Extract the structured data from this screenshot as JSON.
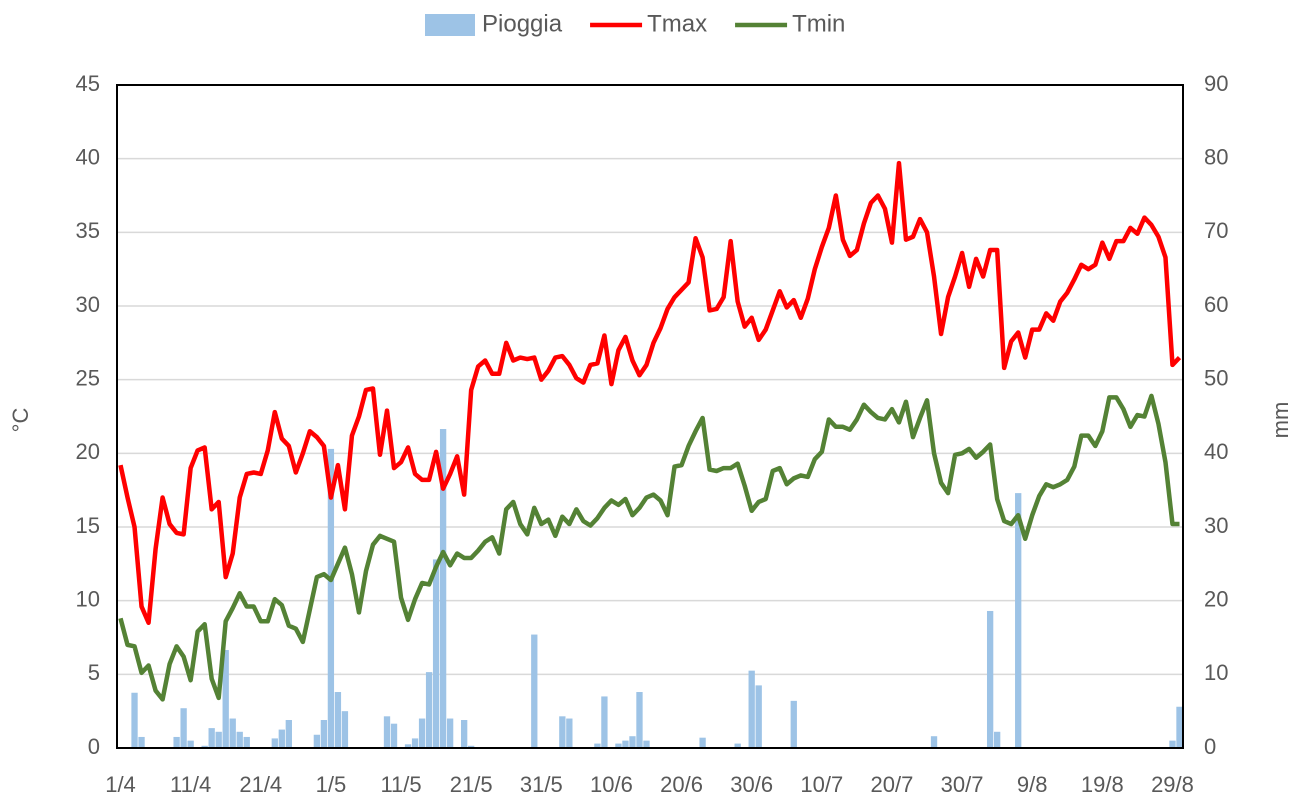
{
  "chart_data": {
    "type": "combo",
    "categories": [
      "1/4",
      null,
      null,
      null,
      null,
      null,
      null,
      null,
      null,
      null,
      "11/4",
      null,
      null,
      null,
      null,
      null,
      null,
      null,
      null,
      null,
      "21/4",
      null,
      null,
      null,
      null,
      null,
      null,
      null,
      null,
      null,
      "1/5",
      null,
      null,
      null,
      null,
      null,
      null,
      null,
      null,
      null,
      "11/5",
      null,
      null,
      null,
      null,
      null,
      null,
      null,
      null,
      null,
      "21/5",
      null,
      null,
      null,
      null,
      null,
      null,
      null,
      null,
      null,
      "31/5",
      null,
      null,
      null,
      null,
      null,
      null,
      null,
      null,
      null,
      "10/6",
      null,
      null,
      null,
      null,
      null,
      null,
      null,
      null,
      null,
      "20/6",
      null,
      null,
      null,
      null,
      null,
      null,
      null,
      null,
      null,
      "30/6",
      null,
      null,
      null,
      null,
      null,
      null,
      null,
      null,
      null,
      "10/7",
      null,
      null,
      null,
      null,
      null,
      null,
      null,
      null,
      null,
      "20/7",
      null,
      null,
      null,
      null,
      null,
      null,
      null,
      null,
      null,
      "30/7",
      null,
      null,
      null,
      null,
      null,
      null,
      null,
      null,
      null,
      "9/8",
      null,
      null,
      null,
      null,
      null,
      null,
      null,
      null,
      null,
      "19/8",
      null,
      null,
      null,
      null,
      null,
      null,
      null,
      null,
      null,
      "29/8",
      null
    ],
    "series": [
      {
        "name": "Pioggia",
        "type": "bar",
        "axis": "y2",
        "color": "#9dc3e6",
        "values": [
          0,
          0,
          7.5,
          1.5,
          0,
          0,
          0,
          0,
          1.5,
          5.4,
          1,
          0,
          0.3,
          2.7,
          2.2,
          13.3,
          4,
          2.2,
          1.5,
          0,
          0,
          0,
          1.3,
          2.5,
          3.8,
          0,
          0,
          0,
          1.8,
          3.8,
          40.6,
          7.6,
          5,
          0,
          0,
          0,
          0,
          0,
          4.3,
          3.3,
          0,
          0.5,
          1.3,
          4,
          10.3,
          25.6,
          43.3,
          4,
          0,
          3.8,
          0.3,
          0,
          0,
          0,
          0,
          0,
          0,
          0,
          0,
          15.4,
          0,
          0,
          0,
          4.3,
          4,
          0,
          0,
          0,
          0.6,
          7,
          0,
          0.6,
          1,
          1.6,
          7.6,
          1,
          0,
          0,
          0,
          0,
          0,
          0,
          0,
          1.4,
          0,
          0,
          0,
          0,
          0.6,
          0,
          10.5,
          8.5,
          0,
          0,
          0,
          0,
          6.4,
          0,
          0,
          0,
          0,
          0,
          0,
          0,
          0,
          0,
          0,
          0,
          0,
          0,
          0,
          0,
          0,
          0,
          0,
          0,
          1.6,
          0,
          0,
          0,
          0,
          0,
          0,
          0,
          18.6,
          2.2,
          0,
          0,
          34.6,
          0,
          0,
          0,
          0,
          0,
          0,
          0,
          0,
          0,
          0,
          0,
          0,
          0,
          0,
          0,
          0,
          0,
          0,
          0,
          0,
          0,
          1,
          5.6
        ]
      },
      {
        "name": "Tmax",
        "type": "line",
        "color": "#ff0000",
        "values": [
          19.2,
          17,
          15,
          9.6,
          8.5,
          13.5,
          17,
          15.2,
          14.6,
          14.5,
          19,
          20.2,
          20.4,
          16.2,
          16.7,
          11.6,
          13.2,
          17,
          18.6,
          18.7,
          18.6,
          20.2,
          22.8,
          21,
          20.5,
          18.7,
          20,
          21.5,
          21.1,
          20.5,
          17,
          19.2,
          16.2,
          21.2,
          22.5,
          24.3,
          24.4,
          19.9,
          22.9,
          19,
          19.4,
          20.4,
          18.6,
          18.2,
          18.2,
          20.1,
          17.6,
          18.6,
          19.8,
          17.2,
          24.3,
          25.9,
          26.3,
          25.4,
          25.4,
          27.5,
          26.3,
          26.5,
          26.4,
          26.5,
          25,
          25.6,
          26.5,
          26.6,
          26,
          25.1,
          24.8,
          26,
          26.1,
          28,
          24.7,
          27,
          27.9,
          26.3,
          25.3,
          26,
          27.5,
          28.5,
          29.8,
          30.6,
          31.1,
          31.6,
          34.6,
          33.3,
          29.7,
          29.8,
          30.6,
          34.4,
          30.3,
          28.6,
          29.2,
          27.7,
          28.4,
          29.7,
          31,
          29.9,
          30.4,
          29.2,
          30.5,
          32.5,
          34,
          35.3,
          37.5,
          34.5,
          33.4,
          33.8,
          35.6,
          37,
          37.5,
          36.6,
          34.3,
          39.7,
          34.5,
          34.7,
          35.9,
          35,
          32,
          28.1,
          30.6,
          32,
          33.6,
          31.3,
          33.2,
          32,
          33.8,
          33.8,
          25.8,
          27.6,
          28.2,
          26.5,
          28.4,
          28.4,
          29.5,
          29,
          30.3,
          30.9,
          31.8,
          32.8,
          32.5,
          32.8,
          34.3,
          33.2,
          34.4,
          34.4,
          35.3,
          34.9,
          36,
          35.5,
          34.7,
          33.3,
          26,
          26.5
        ]
      },
      {
        "name": "Tmin",
        "type": "line",
        "color": "#548235",
        "values": [
          8.8,
          7,
          6.9,
          5.1,
          5.6,
          3.9,
          3.3,
          5.7,
          6.9,
          6.2,
          4.6,
          7.9,
          8.4,
          4.7,
          3.4,
          8.6,
          9.5,
          10.5,
          9.6,
          9.6,
          8.6,
          8.6,
          10.1,
          9.7,
          8.3,
          8.1,
          7.2,
          9.4,
          11.6,
          11.8,
          11.4,
          12.5,
          13.6,
          11.8,
          9.2,
          12,
          13.8,
          14.4,
          14.2,
          14,
          10.2,
          8.7,
          10.1,
          11.2,
          11.1,
          12.3,
          13.3,
          12.4,
          13.2,
          12.9,
          12.9,
          13.4,
          14,
          14.3,
          13.2,
          16.2,
          16.7,
          15.2,
          14.5,
          16.3,
          15.2,
          15.5,
          14.4,
          15.7,
          15.2,
          16.2,
          15.4,
          15.1,
          15.6,
          16.3,
          16.8,
          16.5,
          16.9,
          15.8,
          16.3,
          17,
          17.2,
          16.8,
          15.8,
          19.1,
          19.2,
          20.5,
          21.5,
          22.4,
          18.9,
          18.8,
          19,
          19,
          19.3,
          17.8,
          16.1,
          16.7,
          16.9,
          18.8,
          19,
          17.9,
          18.3,
          18.5,
          18.4,
          19.6,
          20.1,
          22.3,
          21.8,
          21.8,
          21.6,
          22.3,
          23.3,
          22.8,
          22.4,
          22.3,
          23,
          22.1,
          23.5,
          21.1,
          22.4,
          23.6,
          20,
          18,
          17.3,
          19.9,
          20,
          20.3,
          19.7,
          20.1,
          20.6,
          16.9,
          15.4,
          15.2,
          15.8,
          14.2,
          15.8,
          17.1,
          17.9,
          17.7,
          17.9,
          18.2,
          19.1,
          21.2,
          21.2,
          20.5,
          21.5,
          23.8,
          23.8,
          23,
          21.8,
          22.6,
          22.5,
          23.9,
          22,
          19.4,
          15.2,
          15.2
        ]
      }
    ],
    "y_label": "°C",
    "y2_label": "mm",
    "ylim": [
      0,
      45
    ],
    "yticks": [
      0,
      5,
      10,
      15,
      20,
      25,
      30,
      35,
      40,
      45
    ],
    "y2lim": [
      0,
      90
    ],
    "y2ticks": [
      0,
      10,
      20,
      30,
      40,
      50,
      60,
      70,
      80,
      90
    ],
    "grid": true,
    "legend": "top"
  }
}
